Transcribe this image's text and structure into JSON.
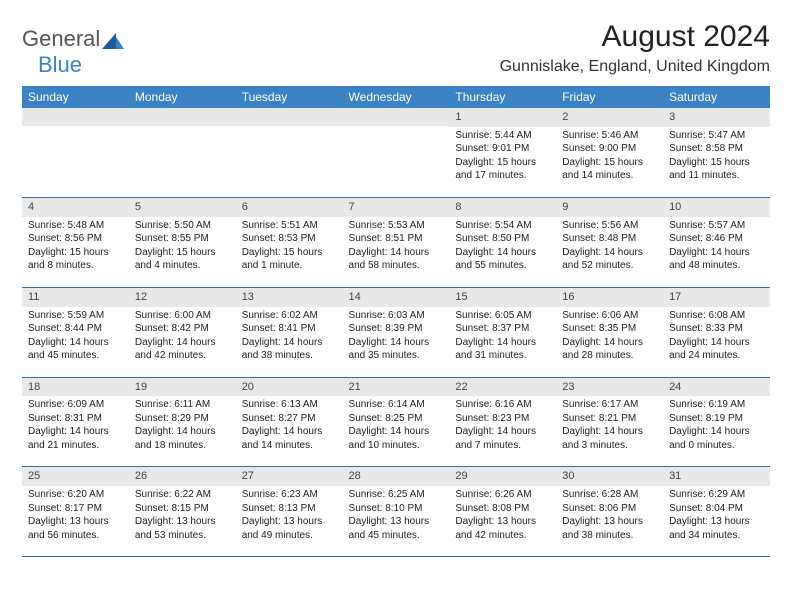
{
  "brand": {
    "part1": "General",
    "part2": "Blue"
  },
  "title": "August 2024",
  "location": "Gunnislake, England, United Kingdom",
  "colors": {
    "header_bg": "#3b82c4",
    "header_text": "#ffffff",
    "daynum_bg": "#e8e8e8",
    "rule": "#3b6ea0",
    "text": "#222222"
  },
  "day_headers": [
    "Sunday",
    "Monday",
    "Tuesday",
    "Wednesday",
    "Thursday",
    "Friday",
    "Saturday"
  ],
  "weeks": [
    [
      null,
      null,
      null,
      null,
      {
        "n": "1",
        "sr": "Sunrise: 5:44 AM",
        "ss": "Sunset: 9:01 PM",
        "dl": "Daylight: 15 hours and 17 minutes."
      },
      {
        "n": "2",
        "sr": "Sunrise: 5:46 AM",
        "ss": "Sunset: 9:00 PM",
        "dl": "Daylight: 15 hours and 14 minutes."
      },
      {
        "n": "3",
        "sr": "Sunrise: 5:47 AM",
        "ss": "Sunset: 8:58 PM",
        "dl": "Daylight: 15 hours and 11 minutes."
      }
    ],
    [
      {
        "n": "4",
        "sr": "Sunrise: 5:48 AM",
        "ss": "Sunset: 8:56 PM",
        "dl": "Daylight: 15 hours and 8 minutes."
      },
      {
        "n": "5",
        "sr": "Sunrise: 5:50 AM",
        "ss": "Sunset: 8:55 PM",
        "dl": "Daylight: 15 hours and 4 minutes."
      },
      {
        "n": "6",
        "sr": "Sunrise: 5:51 AM",
        "ss": "Sunset: 8:53 PM",
        "dl": "Daylight: 15 hours and 1 minute."
      },
      {
        "n": "7",
        "sr": "Sunrise: 5:53 AM",
        "ss": "Sunset: 8:51 PM",
        "dl": "Daylight: 14 hours and 58 minutes."
      },
      {
        "n": "8",
        "sr": "Sunrise: 5:54 AM",
        "ss": "Sunset: 8:50 PM",
        "dl": "Daylight: 14 hours and 55 minutes."
      },
      {
        "n": "9",
        "sr": "Sunrise: 5:56 AM",
        "ss": "Sunset: 8:48 PM",
        "dl": "Daylight: 14 hours and 52 minutes."
      },
      {
        "n": "10",
        "sr": "Sunrise: 5:57 AM",
        "ss": "Sunset: 8:46 PM",
        "dl": "Daylight: 14 hours and 48 minutes."
      }
    ],
    [
      {
        "n": "11",
        "sr": "Sunrise: 5:59 AM",
        "ss": "Sunset: 8:44 PM",
        "dl": "Daylight: 14 hours and 45 minutes."
      },
      {
        "n": "12",
        "sr": "Sunrise: 6:00 AM",
        "ss": "Sunset: 8:42 PM",
        "dl": "Daylight: 14 hours and 42 minutes."
      },
      {
        "n": "13",
        "sr": "Sunrise: 6:02 AM",
        "ss": "Sunset: 8:41 PM",
        "dl": "Daylight: 14 hours and 38 minutes."
      },
      {
        "n": "14",
        "sr": "Sunrise: 6:03 AM",
        "ss": "Sunset: 8:39 PM",
        "dl": "Daylight: 14 hours and 35 minutes."
      },
      {
        "n": "15",
        "sr": "Sunrise: 6:05 AM",
        "ss": "Sunset: 8:37 PM",
        "dl": "Daylight: 14 hours and 31 minutes."
      },
      {
        "n": "16",
        "sr": "Sunrise: 6:06 AM",
        "ss": "Sunset: 8:35 PM",
        "dl": "Daylight: 14 hours and 28 minutes."
      },
      {
        "n": "17",
        "sr": "Sunrise: 6:08 AM",
        "ss": "Sunset: 8:33 PM",
        "dl": "Daylight: 14 hours and 24 minutes."
      }
    ],
    [
      {
        "n": "18",
        "sr": "Sunrise: 6:09 AM",
        "ss": "Sunset: 8:31 PM",
        "dl": "Daylight: 14 hours and 21 minutes."
      },
      {
        "n": "19",
        "sr": "Sunrise: 6:11 AM",
        "ss": "Sunset: 8:29 PM",
        "dl": "Daylight: 14 hours and 18 minutes."
      },
      {
        "n": "20",
        "sr": "Sunrise: 6:13 AM",
        "ss": "Sunset: 8:27 PM",
        "dl": "Daylight: 14 hours and 14 minutes."
      },
      {
        "n": "21",
        "sr": "Sunrise: 6:14 AM",
        "ss": "Sunset: 8:25 PM",
        "dl": "Daylight: 14 hours and 10 minutes."
      },
      {
        "n": "22",
        "sr": "Sunrise: 6:16 AM",
        "ss": "Sunset: 8:23 PM",
        "dl": "Daylight: 14 hours and 7 minutes."
      },
      {
        "n": "23",
        "sr": "Sunrise: 6:17 AM",
        "ss": "Sunset: 8:21 PM",
        "dl": "Daylight: 14 hours and 3 minutes."
      },
      {
        "n": "24",
        "sr": "Sunrise: 6:19 AM",
        "ss": "Sunset: 8:19 PM",
        "dl": "Daylight: 14 hours and 0 minutes."
      }
    ],
    [
      {
        "n": "25",
        "sr": "Sunrise: 6:20 AM",
        "ss": "Sunset: 8:17 PM",
        "dl": "Daylight: 13 hours and 56 minutes."
      },
      {
        "n": "26",
        "sr": "Sunrise: 6:22 AM",
        "ss": "Sunset: 8:15 PM",
        "dl": "Daylight: 13 hours and 53 minutes."
      },
      {
        "n": "27",
        "sr": "Sunrise: 6:23 AM",
        "ss": "Sunset: 8:13 PM",
        "dl": "Daylight: 13 hours and 49 minutes."
      },
      {
        "n": "28",
        "sr": "Sunrise: 6:25 AM",
        "ss": "Sunset: 8:10 PM",
        "dl": "Daylight: 13 hours and 45 minutes."
      },
      {
        "n": "29",
        "sr": "Sunrise: 6:26 AM",
        "ss": "Sunset: 8:08 PM",
        "dl": "Daylight: 13 hours and 42 minutes."
      },
      {
        "n": "30",
        "sr": "Sunrise: 6:28 AM",
        "ss": "Sunset: 8:06 PM",
        "dl": "Daylight: 13 hours and 38 minutes."
      },
      {
        "n": "31",
        "sr": "Sunrise: 6:29 AM",
        "ss": "Sunset: 8:04 PM",
        "dl": "Daylight: 13 hours and 34 minutes."
      }
    ]
  ]
}
